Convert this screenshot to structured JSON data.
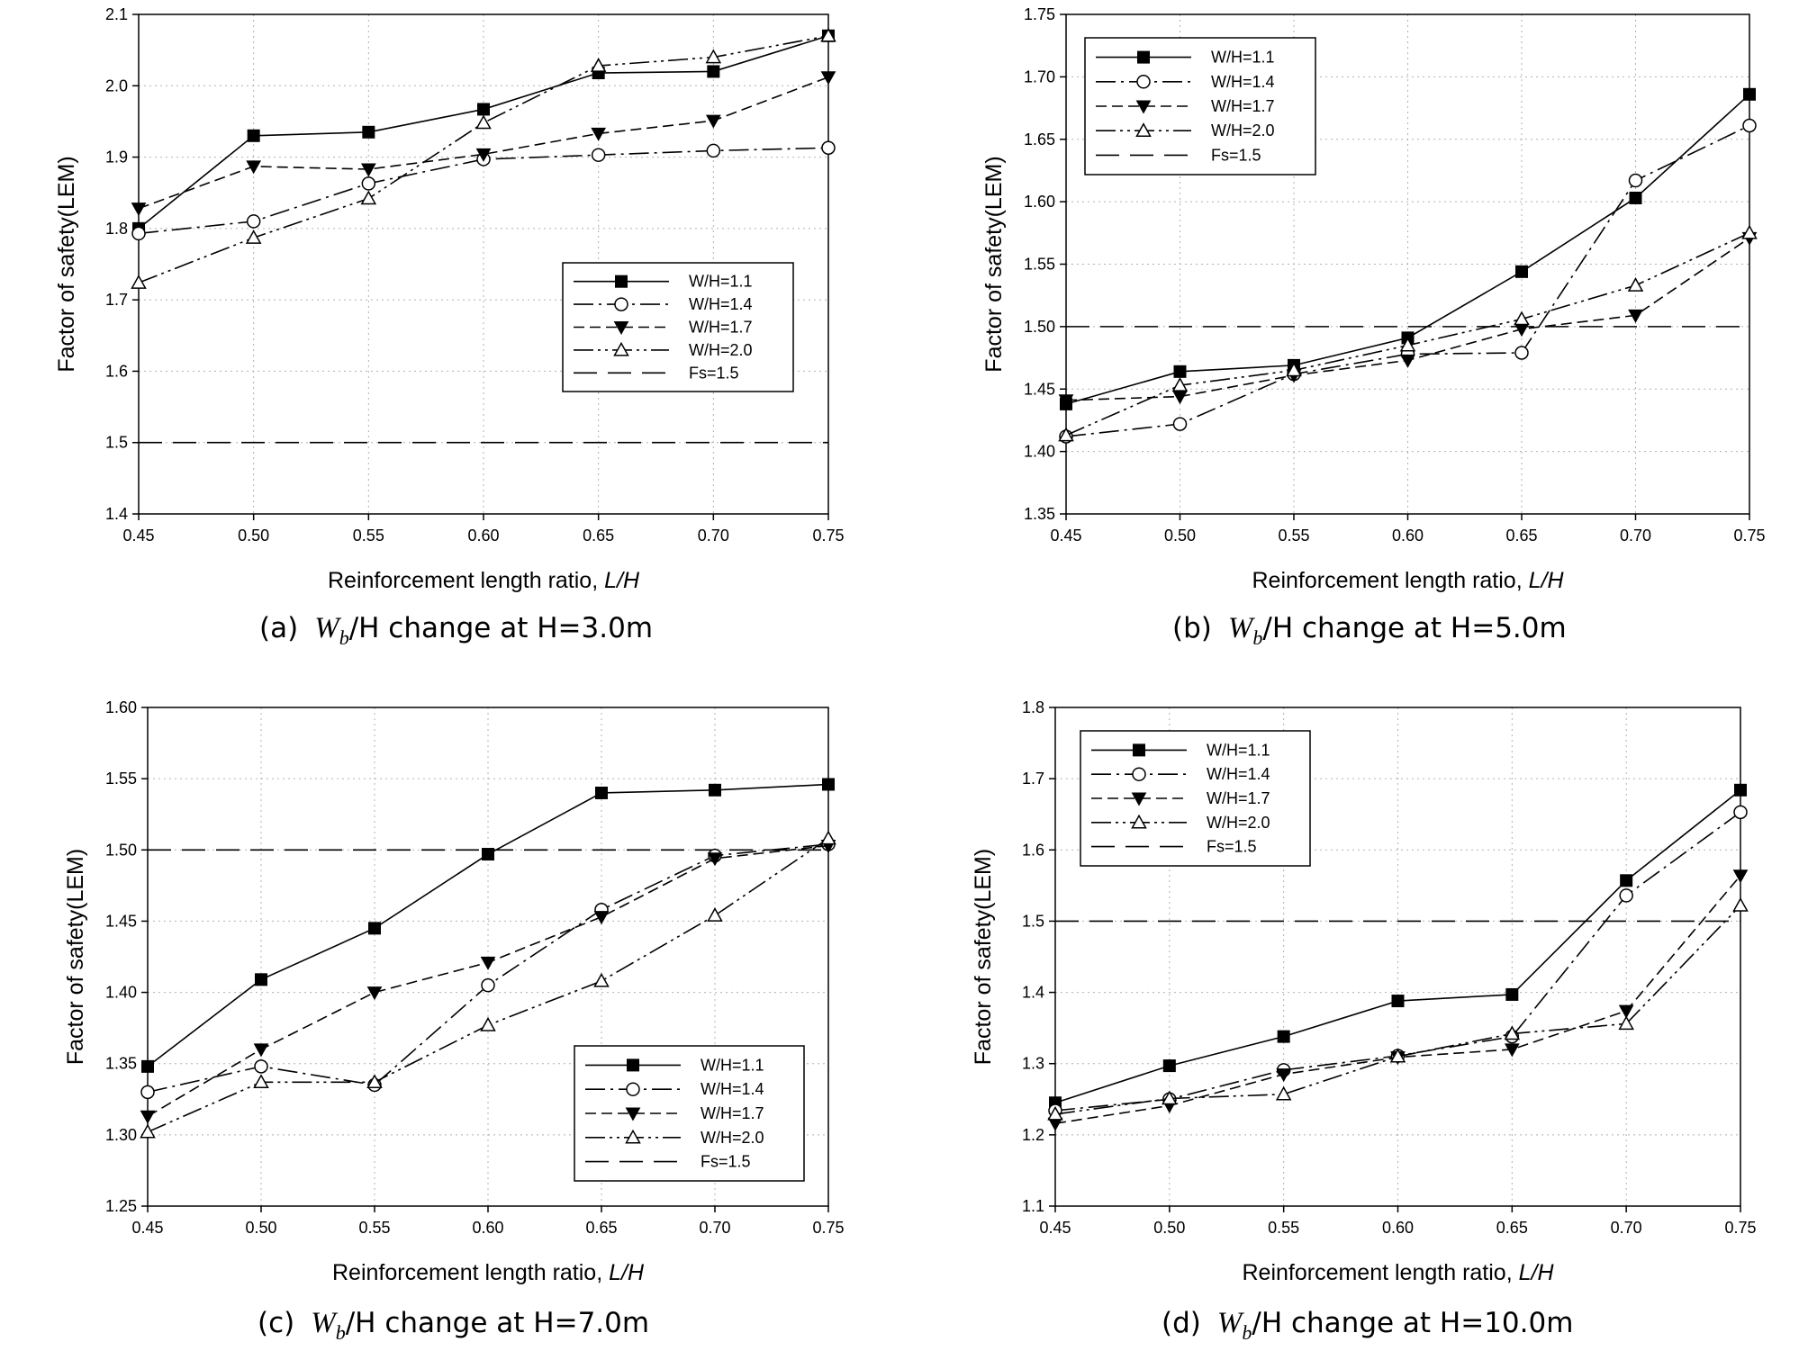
{
  "chart_data": [
    {
      "type": "line",
      "caption_label": "(a)",
      "caption_var": "W",
      "caption_sub": "b",
      "caption_text": "/H change at H=3.0m",
      "ylabel": "Factor of safety(LEM)",
      "xlabel": "Reinforcement length ratio, ",
      "xlabel_var": "L/H",
      "x": [
        0.45,
        0.5,
        0.55,
        0.6,
        0.65,
        0.7,
        0.75
      ],
      "xticks": [
        "0.45",
        "0.50",
        "0.55",
        "0.60",
        "0.65",
        "0.70",
        "0.75"
      ],
      "xlim": [
        0.45,
        0.75
      ],
      "ylim": [
        1.4,
        2.1
      ],
      "yticks": [
        "1.4",
        "1.5",
        "1.6",
        "1.7",
        "1.8",
        "1.9",
        "2.0",
        "2.1"
      ],
      "grid": true,
      "legend_position": "lower-right",
      "threshold": {
        "name": "Fs=1.5",
        "value": 1.5
      },
      "series": [
        {
          "name": "W/H=1.1",
          "values": [
            1.8,
            1.93,
            1.935,
            1.967,
            2.018,
            2.02,
            2.07
          ]
        },
        {
          "name": "W/H=1.4",
          "values": [
            1.793,
            1.81,
            1.863,
            1.897,
            1.903,
            1.909,
            1.913
          ]
        },
        {
          "name": "W/H=1.7",
          "values": [
            1.828,
            1.887,
            1.883,
            1.904,
            1.933,
            1.951,
            2.012
          ]
        },
        {
          "name": "W/H=2.0",
          "values": [
            1.724,
            1.787,
            1.842,
            1.948,
            2.028,
            2.04,
            2.07
          ]
        }
      ]
    },
    {
      "type": "line",
      "caption_label": "(b)",
      "caption_var": "W",
      "caption_sub": "b",
      "caption_text": "/H change at H=5.0m",
      "ylabel": "Factor of safety(LEM)",
      "xlabel": "Reinforcement length ratio, ",
      "xlabel_var": "L/H",
      "x": [
        0.45,
        0.5,
        0.55,
        0.6,
        0.65,
        0.7,
        0.75
      ],
      "xticks": [
        "0.45",
        "0.50",
        "0.55",
        "0.60",
        "0.65",
        "0.70",
        "0.75"
      ],
      "xlim": [
        0.45,
        0.75
      ],
      "ylim": [
        1.35,
        1.75
      ],
      "yticks": [
        "1.35",
        "1.40",
        "1.45",
        "1.50",
        "1.55",
        "1.60",
        "1.65",
        "1.70",
        "1.75"
      ],
      "grid": true,
      "legend_position": "top-left",
      "threshold": {
        "name": "Fs=1.5",
        "value": 1.5
      },
      "series": [
        {
          "name": "W/H=1.1",
          "values": [
            1.438,
            1.464,
            1.469,
            1.491,
            1.544,
            1.603,
            1.686
          ]
        },
        {
          "name": "W/H=1.4",
          "values": [
            1.412,
            1.422,
            1.462,
            1.478,
            1.479,
            1.617,
            1.661
          ]
        },
        {
          "name": "W/H=1.7",
          "values": [
            1.441,
            1.444,
            1.461,
            1.473,
            1.498,
            1.509,
            1.571
          ]
        },
        {
          "name": "W/H=2.0",
          "values": [
            1.413,
            1.453,
            1.465,
            1.485,
            1.506,
            1.533,
            1.575
          ]
        }
      ]
    },
    {
      "type": "line",
      "caption_label": "(c)",
      "caption_var": "W",
      "caption_sub": "b",
      "caption_text": "/H change at H=7.0m",
      "ylabel": "Factor of safety(LEM)",
      "xlabel": "Reinforcement length ratio, ",
      "xlabel_var": "L/H",
      "x": [
        0.45,
        0.5,
        0.55,
        0.6,
        0.65,
        0.7,
        0.75
      ],
      "xticks": [
        "0.45",
        "0.50",
        "0.55",
        "0.60",
        "0.65",
        "0.70",
        "0.75"
      ],
      "xlim": [
        0.45,
        0.75
      ],
      "ylim": [
        1.25,
        1.6
      ],
      "yticks": [
        "1.25",
        "1.30",
        "1.35",
        "1.40",
        "1.45",
        "1.50",
        "1.55",
        "1.60"
      ],
      "grid": true,
      "legend_position": "lower-right",
      "threshold": {
        "name": "Fs=1.5",
        "value": 1.5
      },
      "series": [
        {
          "name": "W/H=1.1",
          "values": [
            1.348,
            1.409,
            1.445,
            1.497,
            1.54,
            1.542,
            1.546
          ]
        },
        {
          "name": "W/H=1.4",
          "values": [
            1.33,
            1.348,
            1.335,
            1.405,
            1.458,
            1.496,
            1.504
          ]
        },
        {
          "name": "W/H=1.7",
          "values": [
            1.313,
            1.36,
            1.4,
            1.421,
            1.453,
            1.494,
            1.503
          ]
        },
        {
          "name": "W/H=2.0",
          "values": [
            1.302,
            1.337,
            1.337,
            1.377,
            1.408,
            1.454,
            1.508
          ]
        }
      ]
    },
    {
      "type": "line",
      "caption_label": "(d)",
      "caption_var": "W",
      "caption_sub": "b",
      "caption_text": "/H change at H=10.0m",
      "ylabel": "Factor of safety(LEM)",
      "xlabel": "Reinforcement length ratio, ",
      "xlabel_var": "L/H",
      "x": [
        0.45,
        0.5,
        0.55,
        0.6,
        0.65,
        0.7,
        0.75
      ],
      "xticks": [
        "0.45",
        "0.50",
        "0.55",
        "0.60",
        "0.65",
        "0.70",
        "0.75"
      ],
      "xlim": [
        0.45,
        0.75
      ],
      "ylim": [
        1.1,
        1.8
      ],
      "yticks": [
        "1.1",
        "1.2",
        "1.3",
        "1.4",
        "1.5",
        "1.6",
        "1.7",
        "1.8"
      ],
      "grid": true,
      "legend_position": "top-left",
      "threshold": {
        "name": "Fs=1.5",
        "value": 1.5
      },
      "series": [
        {
          "name": "W/H=1.1",
          "values": [
            1.245,
            1.297,
            1.338,
            1.388,
            1.397,
            1.557,
            1.684
          ]
        },
        {
          "name": "W/H=1.4",
          "values": [
            1.234,
            1.25,
            1.291,
            1.311,
            1.338,
            1.536,
            1.653
          ]
        },
        {
          "name": "W/H=1.7",
          "values": [
            1.216,
            1.241,
            1.285,
            1.309,
            1.32,
            1.374,
            1.564
          ]
        },
        {
          "name": "W/H=2.0",
          "values": [
            1.229,
            1.251,
            1.257,
            1.31,
            1.342,
            1.356,
            1.522
          ]
        }
      ]
    }
  ]
}
